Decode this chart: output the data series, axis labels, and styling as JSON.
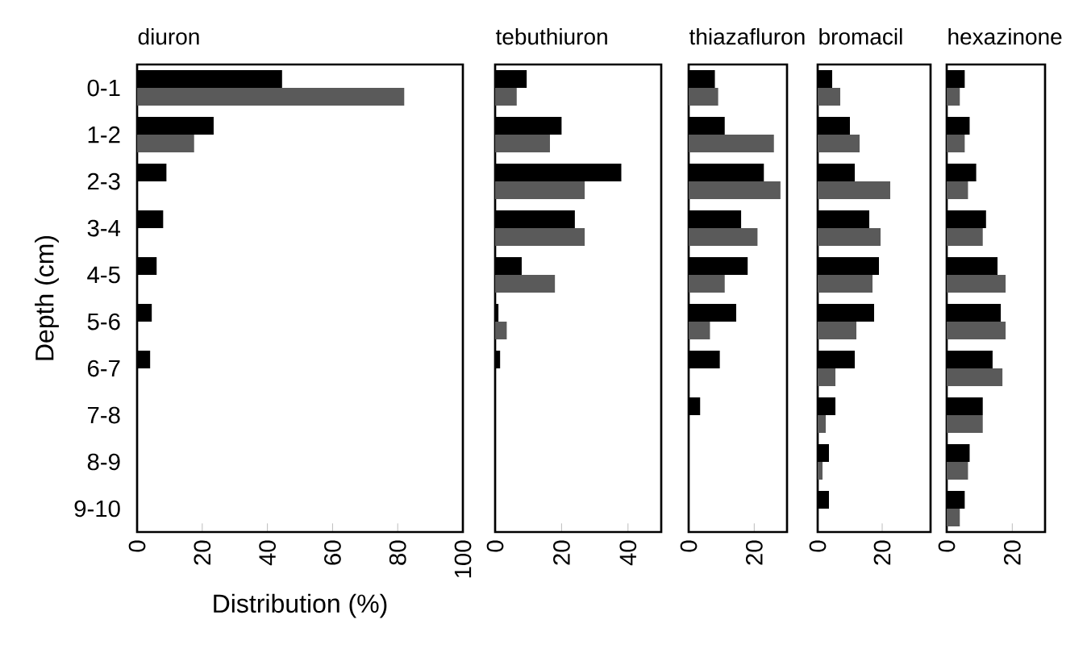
{
  "chart_data": [
    {
      "type": "bar",
      "orientation": "horizontal",
      "title": "diuron",
      "ylabel": "Depth (cm)",
      "xlabel": "Distribution (%)",
      "categories": [
        "0-1",
        "1-2",
        "2-3",
        "3-4",
        "4-5",
        "5-6",
        "6-7",
        "7-8",
        "8-9",
        "9-10"
      ],
      "xlim": [
        0,
        100
      ],
      "xticks": [
        0,
        20,
        40,
        60,
        80,
        100
      ],
      "series": [
        {
          "color": "#000000",
          "values": [
            44.5,
            23.5,
            9,
            8,
            6,
            4.5,
            4,
            null,
            null,
            null
          ]
        },
        {
          "color": "#5a5a5a",
          "values": [
            82,
            17.5,
            null,
            null,
            null,
            null,
            null,
            null,
            null,
            null
          ]
        }
      ]
    },
    {
      "type": "bar",
      "orientation": "horizontal",
      "title": "tebuthiuron",
      "tick_labels": "x",
      "categories": [
        null,
        null,
        null,
        null,
        null,
        null,
        null,
        null,
        null,
        null
      ],
      "xlim": [
        0,
        50
      ],
      "xticks": [
        0,
        20,
        40
      ],
      "series": [
        {
          "color": "#000000",
          "values": [
            9.5,
            20,
            38,
            24,
            8,
            1,
            1.5,
            null,
            null,
            null
          ]
        },
        {
          "color": "#5a5a5a",
          "values": [
            6.5,
            16.5,
            27,
            27,
            18,
            3.5,
            null,
            null,
            null,
            null
          ]
        }
      ]
    },
    {
      "type": "bar",
      "orientation": "horizontal",
      "title": "thiazafluron",
      "tick_labels": "x",
      "categories": [
        null,
        null,
        null,
        null,
        null,
        null,
        null,
        null,
        null,
        null
      ],
      "xlim": [
        0,
        30
      ],
      "xticks": [
        0,
        20
      ],
      "series": [
        {
          "color": "#000000",
          "values": [
            8,
            11,
            23,
            16,
            18,
            14.5,
            9.5,
            3.5,
            null,
            null
          ]
        },
        {
          "color": "#5a5a5a",
          "values": [
            9,
            26,
            28,
            21,
            11,
            6.5,
            null,
            null,
            null,
            null
          ]
        }
      ]
    },
    {
      "type": "bar",
      "orientation": "horizontal",
      "title": "bromacil",
      "tick_labels": "x",
      "categories": [
        null,
        null,
        null,
        null,
        null,
        null,
        null,
        null,
        null,
        null
      ],
      "xlim": [
        0,
        35
      ],
      "xticks": [
        0,
        20
      ],
      "series": [
        {
          "color": "#000000",
          "values": [
            4.5,
            10,
            11.5,
            16,
            19,
            17.5,
            11.5,
            5.5,
            3.5,
            3.5
          ]
        },
        {
          "color": "#5a5a5a",
          "values": [
            7,
            13,
            22.5,
            19.5,
            17,
            12,
            5.5,
            2.5,
            1.5,
            null
          ]
        }
      ]
    },
    {
      "type": "bar",
      "orientation": "horizontal",
      "title": "hexazinone",
      "tick_labels": "x",
      "categories": [
        null,
        null,
        null,
        null,
        null,
        null,
        null,
        null,
        null,
        null
      ],
      "xlim": [
        0,
        30
      ],
      "xticks": [
        0,
        20
      ],
      "series": [
        {
          "color": "#000000",
          "values": [
            5.5,
            7,
            9,
            12,
            15.5,
            16.5,
            14,
            11,
            7,
            5.5
          ]
        },
        {
          "color": "#5a5a5a",
          "values": [
            4,
            5.5,
            6.5,
            11,
            18,
            18,
            17,
            11,
            6.5,
            4
          ]
        }
      ]
    }
  ]
}
